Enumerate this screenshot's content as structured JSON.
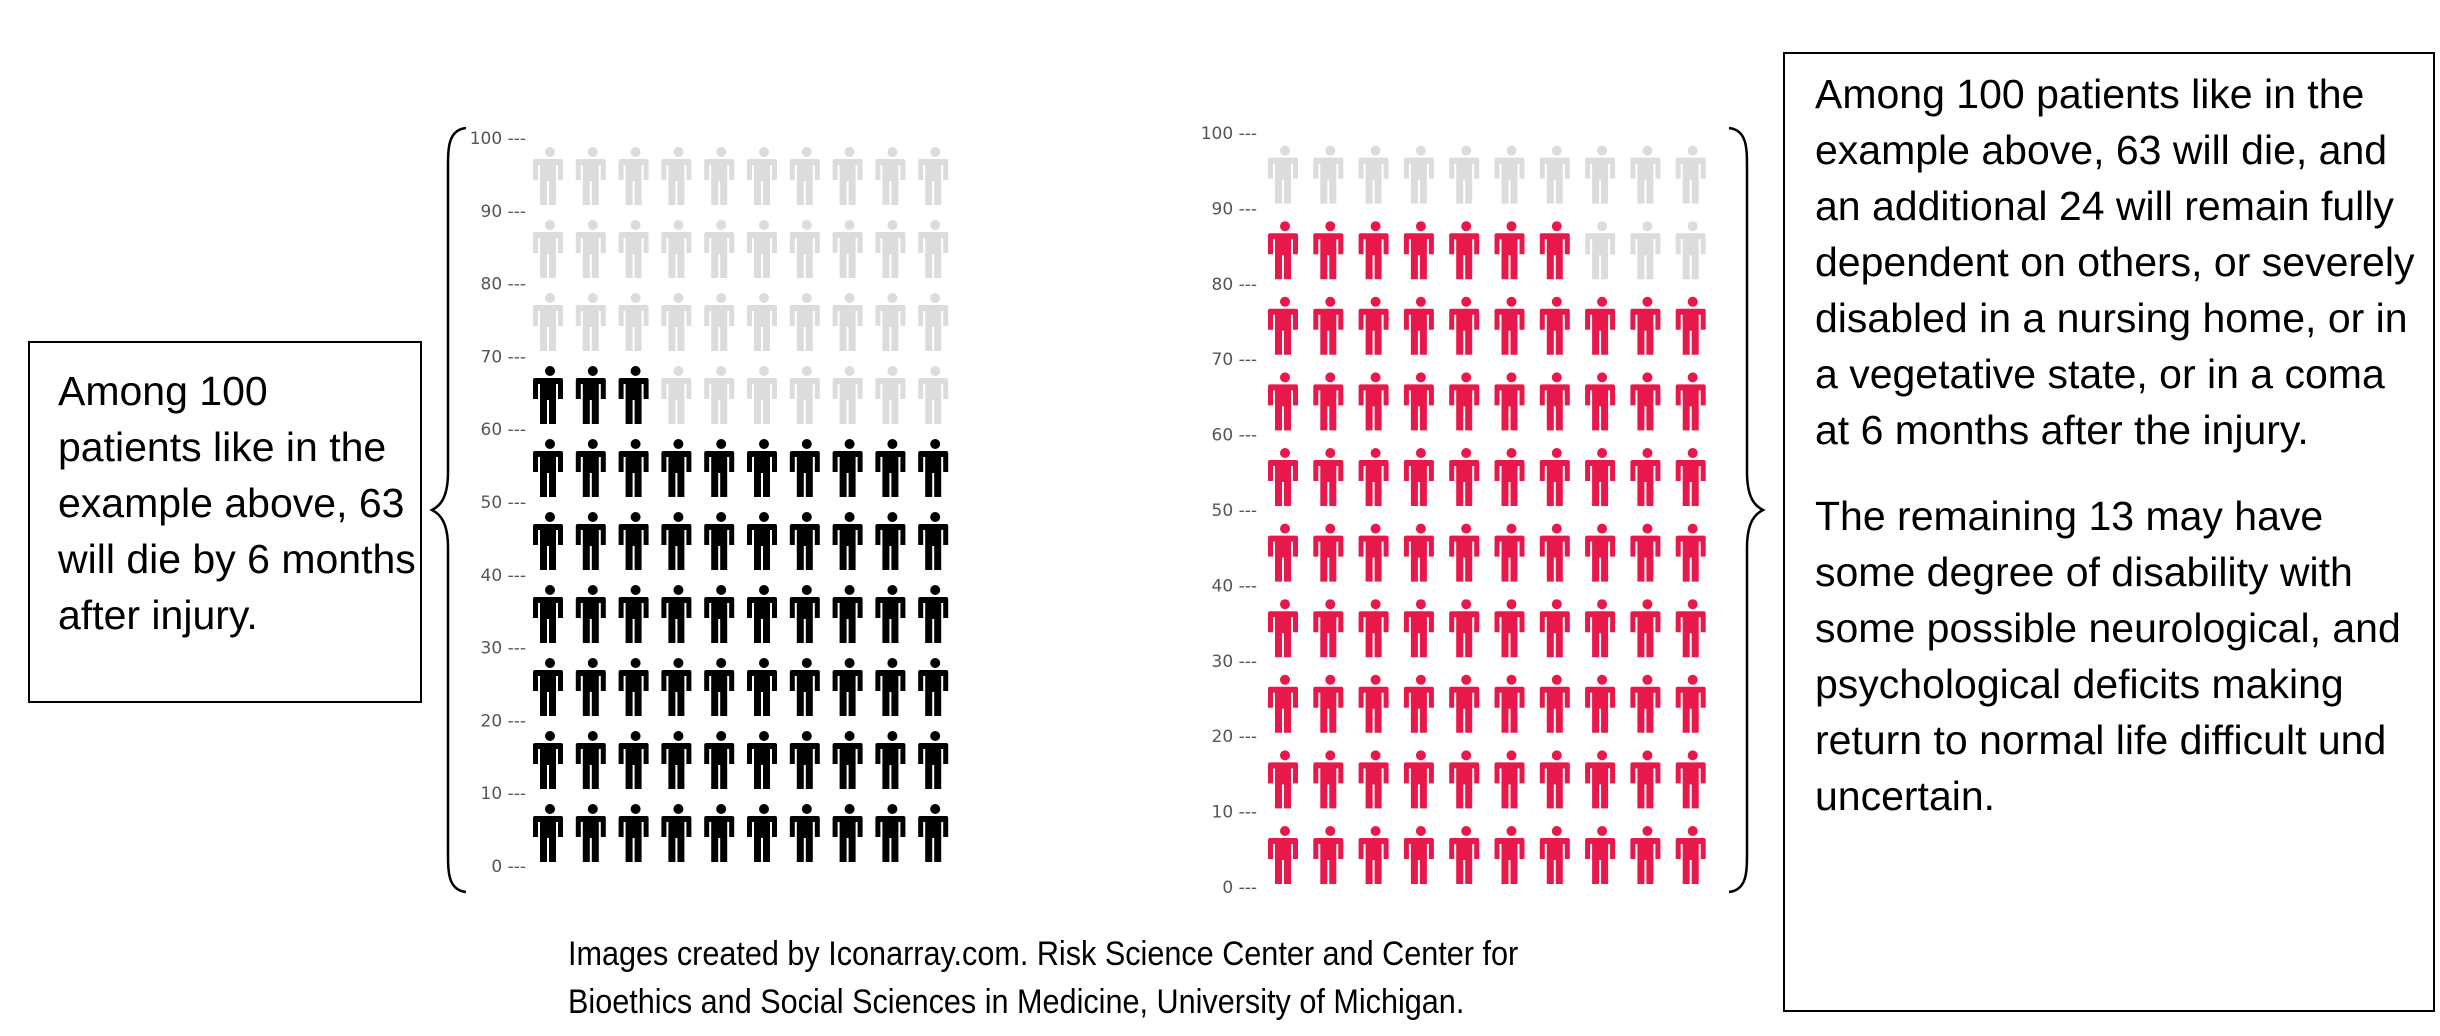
{
  "left_caption": "Among 100 patients like in the example above, 63 will die by 6 months after injury.",
  "right_caption": {
    "p1": "Among 100 patients like in the example above, 63 will die, and an additional 24 will remain fully dependent on others, or severely disabled in a nursing home, or in a vegetative state, or in a coma at 6 months after the injury.",
    "p2": "The remaining 13 may have some degree of disability with some possible neurological, and psychological deficits making return to normal life difficult und uncertain."
  },
  "footer": {
    "line1": "Images created by Iconarray.com. Risk Science Center and Center for",
    "line2": "Bioethics and Social Sciences in Medicine, University of Michigan."
  },
  "colors": {
    "black": "#000000",
    "red": "#e8184a",
    "gray": "#dcdcdc",
    "tick": "#555555"
  },
  "chart_data": [
    {
      "type": "icon_array",
      "total": 100,
      "columns": 10,
      "rows": 10,
      "y_ticks": [
        0,
        10,
        20,
        30,
        40,
        50,
        60,
        70,
        80,
        90,
        100
      ],
      "series": [
        {
          "value": 63,
          "color": "#000000"
        },
        {
          "value": 37,
          "color": "#dcdcdc"
        }
      ]
    },
    {
      "type": "icon_array",
      "total": 100,
      "columns": 10,
      "rows": 10,
      "y_ticks": [
        0,
        10,
        20,
        30,
        40,
        50,
        60,
        70,
        80,
        90,
        100
      ],
      "series": [
        {
          "value": 87,
          "color": "#e8184a"
        },
        {
          "value": 13,
          "color": "#dcdcdc"
        }
      ]
    }
  ]
}
